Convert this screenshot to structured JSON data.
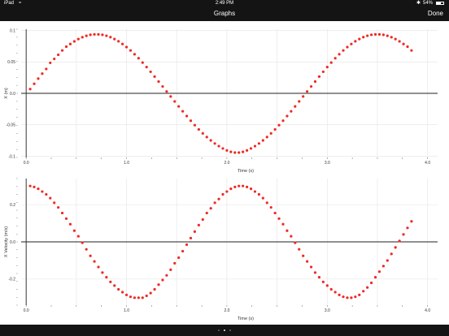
{
  "status": {
    "device": "iPad",
    "time": "2:49 PM",
    "battery": "54%"
  },
  "nav": {
    "title": "Graphs",
    "done_label": "Done"
  },
  "colors": {
    "point": "#ee2a24",
    "bar": "#141414"
  },
  "chart_data": [
    {
      "type": "scatter",
      "xlabel": "Time (s)",
      "ylabel": "X (m)",
      "xlim": [
        -0.05,
        4.1
      ],
      "ylim": [
        -0.102,
        0.102
      ],
      "xticks": [
        0.0,
        1.0,
        2.0,
        3.0,
        4.0
      ],
      "xtick_labels": [
        "0.0",
        "1.0",
        "2.0",
        "3.0",
        "4.0"
      ],
      "yticks": [
        0.1,
        0.05,
        0.0,
        -0.05,
        -0.1
      ],
      "ytick_labels": [
        "0.1",
        "0.05",
        "0.0",
        "-0.05",
        "-0.1"
      ],
      "grid": true,
      "x": [
        0.04,
        0.08,
        0.12,
        0.16,
        0.2,
        0.24,
        0.28,
        0.32,
        0.36,
        0.4,
        0.44,
        0.48,
        0.52,
        0.56,
        0.6,
        0.64,
        0.68,
        0.72,
        0.76,
        0.8,
        0.84,
        0.88,
        0.92,
        0.96,
        1.0,
        1.04,
        1.08,
        1.12,
        1.16,
        1.2,
        1.24,
        1.28,
        1.32,
        1.36,
        1.4,
        1.44,
        1.48,
        1.52,
        1.56,
        1.6,
        1.64,
        1.68,
        1.72,
        1.76,
        1.8,
        1.84,
        1.88,
        1.92,
        1.96,
        2.0,
        2.04,
        2.08,
        2.12,
        2.16,
        2.2,
        2.24,
        2.28,
        2.32,
        2.36,
        2.4,
        2.44,
        2.48,
        2.52,
        2.56,
        2.6,
        2.64,
        2.68,
        2.72,
        2.76,
        2.8,
        2.84,
        2.88,
        2.92,
        2.96,
        3.0,
        3.04,
        3.08,
        3.12,
        3.16,
        3.2,
        3.24,
        3.28,
        3.32,
        3.36,
        3.4,
        3.44,
        3.48,
        3.52,
        3.56,
        3.6,
        3.64,
        3.68,
        3.72,
        3.76,
        3.8,
        3.84
      ],
      "y": [
        0.0068,
        0.0152,
        0.0234,
        0.0313,
        0.0388,
        0.0485,
        0.0548,
        0.0614,
        0.0682,
        0.0743,
        0.0784,
        0.0827,
        0.0863,
        0.0893,
        0.0915,
        0.0931,
        0.0938,
        0.0938,
        0.0931,
        0.0916,
        0.0894,
        0.0864,
        0.0828,
        0.0785,
        0.0736,
        0.0682,
        0.0622,
        0.0558,
        0.0489,
        0.0418,
        0.0343,
        0.0266,
        0.0188,
        0.0109,
        0.003,
        -0.005,
        -0.0129,
        -0.0208,
        -0.0286,
        -0.0362,
        -0.0436,
        -0.0506,
        -0.0574,
        -0.0637,
        -0.0696,
        -0.0749,
        -0.0798,
        -0.084,
        -0.0877,
        -0.0908,
        -0.0931,
        -0.0943,
        -0.0943,
        -0.0931,
        -0.0908,
        -0.0877,
        -0.084,
        -0.0798,
        -0.0749,
        -0.0696,
        -0.0637,
        -0.0574,
        -0.0506,
        -0.0436,
        -0.0362,
        -0.0286,
        -0.0208,
        -0.0129,
        -0.005,
        0.003,
        0.0109,
        0.0188,
        0.0266,
        0.0343,
        0.0418,
        0.0489,
        0.0558,
        0.0622,
        0.0682,
        0.0736,
        0.0785,
        0.0828,
        0.0864,
        0.0894,
        0.0916,
        0.0931,
        0.0938,
        0.0938,
        0.0931,
        0.0915,
        0.0893,
        0.0863,
        0.0827,
        0.0784,
        0.0743,
        0.0682
      ]
    },
    {
      "type": "scatter",
      "xlabel": "Time (s)",
      "ylabel": "X Velocity (m/s)",
      "xlim": [
        -0.05,
        4.1
      ],
      "ylim": [
        -0.34,
        0.34
      ],
      "xticks": [
        0.0,
        1.0,
        2.0,
        3.0,
        4.0
      ],
      "xtick_labels": [
        "0.0",
        "1.0",
        "2.0",
        "3.0",
        "4.0"
      ],
      "yticks": [
        0.2,
        0.0,
        -0.2
      ],
      "ytick_labels": [
        "0.2",
        "0.0",
        "-0.2"
      ],
      "grid": true,
      "x": [
        0.04,
        0.08,
        0.12,
        0.16,
        0.2,
        0.24,
        0.28,
        0.32,
        0.36,
        0.4,
        0.44,
        0.48,
        0.52,
        0.56,
        0.6,
        0.64,
        0.68,
        0.72,
        0.76,
        0.8,
        0.84,
        0.88,
        0.92,
        0.96,
        1.0,
        1.04,
        1.08,
        1.12,
        1.16,
        1.2,
        1.24,
        1.28,
        1.32,
        1.36,
        1.4,
        1.44,
        1.48,
        1.52,
        1.56,
        1.6,
        1.64,
        1.68,
        1.72,
        1.76,
        1.8,
        1.84,
        1.88,
        1.92,
        1.96,
        2.0,
        2.04,
        2.08,
        2.12,
        2.16,
        2.2,
        2.24,
        2.28,
        2.32,
        2.36,
        2.4,
        2.44,
        2.48,
        2.52,
        2.56,
        2.6,
        2.64,
        2.68,
        2.72,
        2.76,
        2.8,
        2.84,
        2.88,
        2.92,
        2.96,
        3.0,
        3.04,
        3.08,
        3.12,
        3.16,
        3.2,
        3.24,
        3.28,
        3.32,
        3.36,
        3.4,
        3.44,
        3.48,
        3.52,
        3.56,
        3.6,
        3.64,
        3.68,
        3.72,
        3.76,
        3.8,
        3.84
      ],
      "y": [
        0.3,
        0.295,
        0.285,
        0.27,
        0.255,
        0.235,
        0.21,
        0.185,
        0.155,
        0.125,
        0.095,
        0.06,
        0.03,
        -0.005,
        -0.04,
        -0.075,
        -0.105,
        -0.135,
        -0.165,
        -0.19,
        -0.215,
        -0.235,
        -0.255,
        -0.27,
        -0.285,
        -0.295,
        -0.3,
        -0.3,
        -0.3,
        -0.29,
        -0.275,
        -0.255,
        -0.23,
        -0.205,
        -0.18,
        -0.15,
        -0.115,
        -0.085,
        -0.05,
        -0.015,
        0.02,
        0.055,
        0.09,
        0.12,
        0.155,
        0.18,
        0.21,
        0.23,
        0.255,
        0.27,
        0.285,
        0.295,
        0.3,
        0.3,
        0.295,
        0.285,
        0.27,
        0.255,
        0.235,
        0.21,
        0.185,
        0.155,
        0.125,
        0.095,
        0.06,
        0.03,
        -0.005,
        -0.04,
        -0.075,
        -0.105,
        -0.135,
        -0.165,
        -0.19,
        -0.215,
        -0.235,
        -0.255,
        -0.27,
        -0.285,
        -0.295,
        -0.3,
        -0.3,
        -0.295,
        -0.285,
        -0.265,
        -0.245,
        -0.22,
        -0.19,
        -0.16,
        -0.13,
        -0.1,
        -0.065,
        -0.03,
        0.005,
        0.04,
        0.075,
        0.11
      ]
    }
  ]
}
